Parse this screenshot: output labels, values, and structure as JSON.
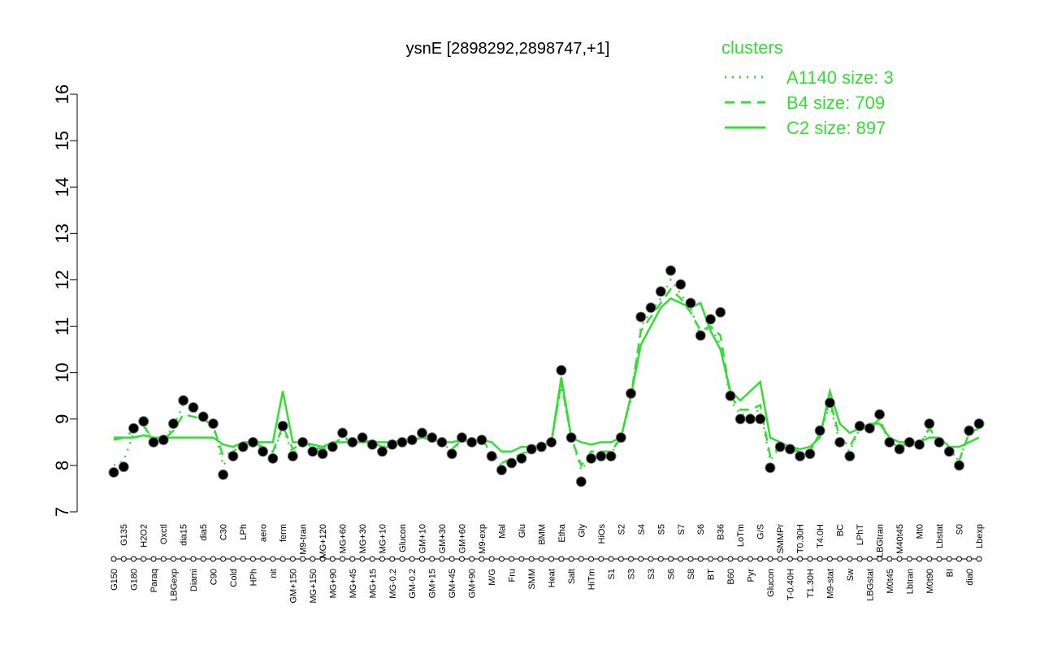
{
  "chart_data": {
    "type": "line",
    "title": "ysnE [2898292,2898747,+1]",
    "categories": [
      "G150",
      "G135",
      "G180",
      "H2O2",
      "Paraq",
      "Oxctl",
      "LBGexp",
      "dia15",
      "Diami",
      "dia5",
      "C90",
      "C30",
      "Cold",
      "LPh",
      "HPh",
      "aero",
      "nit",
      "ferm",
      "GM+150",
      "M9-tran",
      "MG+150",
      "MG+120",
      "MG+90",
      "MG+60",
      "MG+45",
      "MG+30",
      "MG+15",
      "MG+10",
      "MG-0.2",
      "Glucon",
      "GM-0.2",
      "GM+10",
      "GM+15",
      "GM+30",
      "GM+45",
      "GM+60",
      "GM+90",
      "M9-exp",
      "M/G",
      "Mal",
      "Fru",
      "Glu",
      "SMM",
      "BMM",
      "Heat",
      "Etha",
      "Salt",
      "Gly",
      "HiTm",
      "HiOs",
      "S1",
      "S2",
      "S3",
      "S4",
      "S3",
      "S5",
      "S6",
      "S7",
      "S8",
      "S6",
      "BT",
      "B36",
      "B60",
      "LoTm",
      "Pyr",
      "G/S",
      "Glucon",
      "SMMPr",
      "T-0.40H",
      "T0.30H",
      "T1.30H",
      "T4.0H",
      "M9-stat",
      "BC",
      "Sw",
      "LPhT",
      "LBGstat",
      "LBGtran",
      "M0t45",
      "M40t45",
      "Lbtran",
      "Mt0",
      "M0t90",
      "Lbstat",
      "BI",
      "S0",
      "dia0",
      "Lbexp"
    ],
    "values": [
      7.85,
      7.97,
      8.8,
      8.95,
      8.5,
      8.55,
      8.9,
      9.4,
      9.25,
      9.05,
      8.9,
      7.8,
      8.2,
      8.4,
      8.5,
      8.3,
      8.15,
      8.85,
      8.2,
      8.5,
      8.3,
      8.25,
      8.4,
      8.7,
      8.5,
      8.6,
      8.45,
      8.3,
      8.45,
      8.5,
      8.55,
      8.7,
      8.6,
      8.5,
      8.25,
      8.6,
      8.5,
      8.55,
      8.2,
      7.9,
      8.05,
      8.15,
      8.35,
      8.4,
      8.5,
      10.05,
      8.6,
      7.65,
      8.15,
      8.2,
      8.2,
      8.6,
      9.55,
      11.2,
      11.4,
      11.75,
      12.2,
      11.9,
      11.5,
      10.8,
      11.15,
      11.3,
      9.5,
      9.0,
      9.0,
      9.0,
      7.95,
      8.4,
      8.35,
      8.2,
      8.25,
      8.75,
      9.35,
      8.5,
      8.2,
      8.85,
      8.8,
      9.1,
      8.5,
      8.35,
      8.5,
      8.45,
      8.9,
      8.5,
      8.3,
      8.0,
      8.75,
      8.9
    ],
    "point_color": "#000000",
    "legend_title": "clusters",
    "legend_position": "top-right",
    "series": [
      {
        "name": "A1140 size: 3",
        "color": "#33dd33",
        "linestyle": "dotted",
        "values": [
          8.0,
          8.1,
          8.7,
          8.9,
          8.5,
          8.55,
          8.85,
          9.3,
          9.2,
          9.0,
          8.85,
          8.0,
          8.25,
          8.4,
          8.5,
          8.35,
          8.25,
          8.8,
          8.25,
          8.5,
          8.35,
          8.3,
          8.4,
          8.65,
          8.5,
          8.55,
          8.45,
          8.35,
          8.45,
          8.5,
          8.55,
          8.65,
          8.6,
          8.5,
          8.3,
          8.55,
          8.5,
          8.55,
          8.25,
          8.0,
          8.1,
          8.2,
          8.35,
          8.4,
          8.5,
          9.7,
          8.6,
          7.9,
          8.2,
          8.25,
          8.25,
          8.6,
          9.4,
          11.0,
          11.3,
          11.6,
          12.0,
          11.7,
          11.4,
          10.8,
          11.0,
          10.6,
          9.4,
          9.1,
          9.1,
          9.2,
          8.1,
          8.4,
          8.35,
          8.25,
          8.3,
          8.7,
          9.3,
          8.5,
          8.3,
          8.8,
          8.75,
          9.0,
          8.5,
          8.35,
          8.5,
          8.4,
          8.8,
          8.5,
          8.3,
          8.1,
          8.7,
          8.8
        ]
      },
      {
        "name": "B4 size: 709",
        "color": "#33dd33",
        "linestyle": "dashed",
        "values": [
          8.55,
          8.6,
          8.75,
          8.85,
          8.55,
          8.55,
          8.75,
          9.1,
          9.05,
          9.0,
          8.85,
          8.2,
          8.3,
          8.45,
          8.5,
          8.4,
          8.3,
          8.85,
          8.35,
          8.5,
          8.4,
          8.35,
          8.45,
          8.6,
          8.5,
          8.55,
          8.5,
          8.4,
          8.45,
          8.5,
          8.55,
          8.65,
          8.6,
          8.5,
          8.35,
          8.55,
          8.5,
          8.55,
          8.3,
          8.05,
          8.15,
          8.25,
          8.35,
          8.4,
          8.5,
          9.8,
          8.6,
          8.0,
          8.3,
          8.3,
          8.3,
          8.6,
          9.5,
          10.9,
          11.2,
          11.5,
          11.8,
          11.6,
          11.3,
          10.9,
          11.0,
          10.8,
          9.5,
          9.2,
          9.2,
          9.3,
          8.2,
          8.4,
          8.35,
          8.3,
          8.3,
          8.7,
          9.4,
          8.6,
          8.4,
          8.8,
          8.8,
          9.0,
          8.5,
          8.4,
          8.5,
          8.45,
          8.8,
          8.5,
          8.35,
          8.1,
          8.7,
          8.8
        ]
      },
      {
        "name": "C2 size: 897",
        "color": "#33dd33",
        "linestyle": "solid",
        "values": [
          8.6,
          8.6,
          8.6,
          8.65,
          8.6,
          8.6,
          8.6,
          8.6,
          8.6,
          8.6,
          8.6,
          8.45,
          8.4,
          8.5,
          8.5,
          8.5,
          8.5,
          9.6,
          8.5,
          8.5,
          8.45,
          8.4,
          8.5,
          8.5,
          8.5,
          8.5,
          8.5,
          8.5,
          8.5,
          8.55,
          8.55,
          8.6,
          8.55,
          8.5,
          8.5,
          8.55,
          8.5,
          8.55,
          8.5,
          8.3,
          8.3,
          8.4,
          8.4,
          8.45,
          8.5,
          9.9,
          8.6,
          8.5,
          8.45,
          8.5,
          8.5,
          8.6,
          9.5,
          10.6,
          11.0,
          11.4,
          11.6,
          11.5,
          11.4,
          11.5,
          10.9,
          10.5,
          9.6,
          9.4,
          9.6,
          9.8,
          8.6,
          8.5,
          8.4,
          8.35,
          8.4,
          8.6,
          9.6,
          8.9,
          8.7,
          8.8,
          8.9,
          8.9,
          8.6,
          8.5,
          8.5,
          8.5,
          8.6,
          8.6,
          8.4,
          8.4,
          8.5,
          8.6
        ]
      }
    ],
    "ylim": [
      7,
      16
    ],
    "yticks": [
      7,
      8,
      9,
      10,
      11,
      12,
      13,
      14,
      15,
      16
    ]
  }
}
